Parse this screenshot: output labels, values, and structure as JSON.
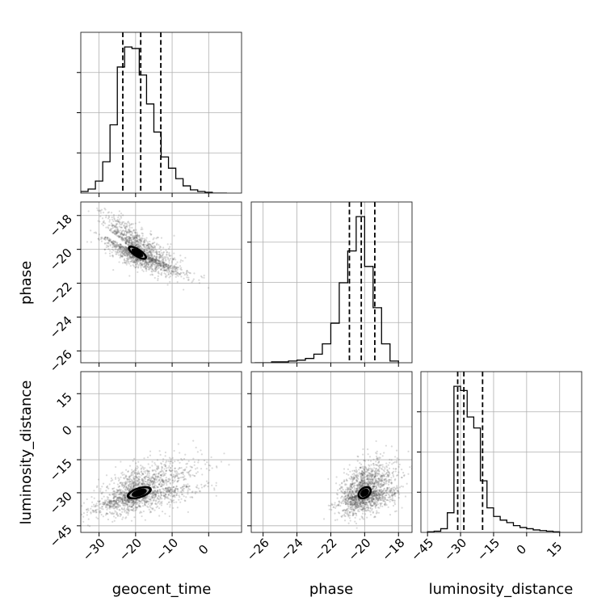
{
  "chart_data": {
    "type": "corner",
    "title": "",
    "parameters": [
      "geocent_time",
      "phase",
      "luminosity_distance"
    ],
    "axes": {
      "geocent_time": {
        "range": [
          -35,
          9
        ],
        "ticks": [
          -30,
          -20,
          -10,
          0
        ],
        "tick_labels": [
          "−30",
          "−20",
          "−10",
          "0"
        ]
      },
      "phase": {
        "range": [
          -26.7,
          -17.2
        ],
        "ticks": [
          -26,
          -24,
          -22,
          -20,
          -18
        ],
        "tick_labels": [
          "−26",
          "−24",
          "−22",
          "−20",
          "−18"
        ]
      },
      "luminosity_distance": {
        "range": [
          -48,
          25
        ],
        "ticks": [
          -45,
          -30,
          -15,
          0,
          15
        ],
        "tick_labels": [
          "−45",
          "−30",
          "−15",
          "0",
          "15"
        ]
      }
    },
    "histograms": [
      {
        "parameter": "geocent_time",
        "bin_edges": [
          -35,
          -33,
          -31,
          -29,
          -27,
          -25,
          -23,
          -21,
          -19,
          -17,
          -15,
          -13,
          -11,
          -9,
          -7,
          -5,
          -3,
          -1,
          1,
          3,
          5
        ],
        "counts": [
          2,
          5,
          15,
          39,
          85,
          157,
          182,
          180,
          147,
          111,
          76,
          45,
          31,
          18,
          9,
          4,
          2,
          1,
          0,
          0
        ],
        "quantiles": [
          -23.5,
          -18.6,
          -13.1
        ]
      },
      {
        "parameter": "phase",
        "bin_edges": [
          -26.5,
          -26,
          -25.5,
          -25,
          -24.5,
          -24,
          -23.5,
          -23,
          -22.5,
          -22,
          -21.5,
          -21,
          -20.5,
          -20,
          -19.5,
          -19,
          -18.5,
          -18
        ],
        "counts": [
          0,
          0,
          1,
          1,
          2,
          3,
          5,
          10,
          22,
          46,
          93,
          130,
          170,
          112,
          64,
          22,
          2
        ],
        "quantiles": [
          -20.9,
          -20.2,
          -19.4
        ]
      },
      {
        "parameter": "luminosity_distance",
        "bin_edges": [
          -45,
          -42,
          -39,
          -36,
          -33,
          -30,
          -27,
          -24,
          -21,
          -18,
          -15,
          -12,
          -9,
          -6,
          -3,
          0,
          3,
          6,
          9,
          12,
          15
        ],
        "counts": [
          1,
          2,
          6,
          32,
          238,
          231,
          188,
          170,
          84,
          40,
          26,
          20,
          16,
          11,
          8,
          6,
          4,
          3,
          2,
          1
        ],
        "quantiles": [
          -31.3,
          -28.5,
          -20
        ]
      }
    ],
    "joint_distributions": [
      {
        "x": "geocent_time",
        "y": "phase",
        "mode": [
          -19.5,
          -20.2
        ],
        "spread": [
          4.5,
          0.7
        ],
        "correlation": -0.75,
        "contour_levels": [
          0.118,
          0.393,
          0.675,
          0.865
        ]
      },
      {
        "x": "geocent_time",
        "y": "luminosity_distance",
        "mode": [
          -19,
          -30
        ],
        "spread": [
          6,
          5
        ],
        "correlation": 0.55,
        "contour_levels": [
          0.118,
          0.393,
          0.675,
          0.865
        ]
      },
      {
        "x": "phase",
        "y": "luminosity_distance",
        "mode": [
          -20,
          -30
        ],
        "spread": [
          0.7,
          5
        ],
        "correlation": 0.35,
        "contour_levels": [
          0.118,
          0.393,
          0.675,
          0.865
        ]
      }
    ],
    "grid": true,
    "legend": "none"
  }
}
